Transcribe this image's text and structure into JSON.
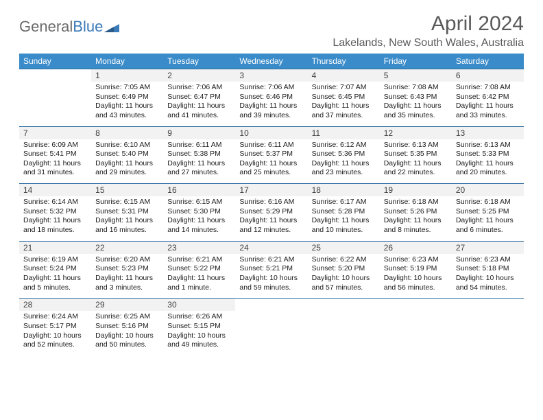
{
  "logo": {
    "text1": "General",
    "text2": "Blue"
  },
  "title": "April 2024",
  "location": "Lakelands, New South Wales, Australia",
  "colors": {
    "header_bg": "#3a8bc9",
    "border": "#2a6aa0",
    "daynum_bg": "#f2f2f2",
    "text": "#1a1a1a",
    "title_text": "#5a5a5a"
  },
  "dow": [
    "Sunday",
    "Monday",
    "Tuesday",
    "Wednesday",
    "Thursday",
    "Friday",
    "Saturday"
  ],
  "weeks": [
    [
      null,
      {
        "n": "1",
        "sr": "Sunrise: 7:05 AM",
        "ss": "Sunset: 6:49 PM",
        "dl": "Daylight: 11 hours and 43 minutes."
      },
      {
        "n": "2",
        "sr": "Sunrise: 7:06 AM",
        "ss": "Sunset: 6:47 PM",
        "dl": "Daylight: 11 hours and 41 minutes."
      },
      {
        "n": "3",
        "sr": "Sunrise: 7:06 AM",
        "ss": "Sunset: 6:46 PM",
        "dl": "Daylight: 11 hours and 39 minutes."
      },
      {
        "n": "4",
        "sr": "Sunrise: 7:07 AM",
        "ss": "Sunset: 6:45 PM",
        "dl": "Daylight: 11 hours and 37 minutes."
      },
      {
        "n": "5",
        "sr": "Sunrise: 7:08 AM",
        "ss": "Sunset: 6:43 PM",
        "dl": "Daylight: 11 hours and 35 minutes."
      },
      {
        "n": "6",
        "sr": "Sunrise: 7:08 AM",
        "ss": "Sunset: 6:42 PM",
        "dl": "Daylight: 11 hours and 33 minutes."
      }
    ],
    [
      {
        "n": "7",
        "sr": "Sunrise: 6:09 AM",
        "ss": "Sunset: 5:41 PM",
        "dl": "Daylight: 11 hours and 31 minutes."
      },
      {
        "n": "8",
        "sr": "Sunrise: 6:10 AM",
        "ss": "Sunset: 5:40 PM",
        "dl": "Daylight: 11 hours and 29 minutes."
      },
      {
        "n": "9",
        "sr": "Sunrise: 6:11 AM",
        "ss": "Sunset: 5:38 PM",
        "dl": "Daylight: 11 hours and 27 minutes."
      },
      {
        "n": "10",
        "sr": "Sunrise: 6:11 AM",
        "ss": "Sunset: 5:37 PM",
        "dl": "Daylight: 11 hours and 25 minutes."
      },
      {
        "n": "11",
        "sr": "Sunrise: 6:12 AM",
        "ss": "Sunset: 5:36 PM",
        "dl": "Daylight: 11 hours and 23 minutes."
      },
      {
        "n": "12",
        "sr": "Sunrise: 6:13 AM",
        "ss": "Sunset: 5:35 PM",
        "dl": "Daylight: 11 hours and 22 minutes."
      },
      {
        "n": "13",
        "sr": "Sunrise: 6:13 AM",
        "ss": "Sunset: 5:33 PM",
        "dl": "Daylight: 11 hours and 20 minutes."
      }
    ],
    [
      {
        "n": "14",
        "sr": "Sunrise: 6:14 AM",
        "ss": "Sunset: 5:32 PM",
        "dl": "Daylight: 11 hours and 18 minutes."
      },
      {
        "n": "15",
        "sr": "Sunrise: 6:15 AM",
        "ss": "Sunset: 5:31 PM",
        "dl": "Daylight: 11 hours and 16 minutes."
      },
      {
        "n": "16",
        "sr": "Sunrise: 6:15 AM",
        "ss": "Sunset: 5:30 PM",
        "dl": "Daylight: 11 hours and 14 minutes."
      },
      {
        "n": "17",
        "sr": "Sunrise: 6:16 AM",
        "ss": "Sunset: 5:29 PM",
        "dl": "Daylight: 11 hours and 12 minutes."
      },
      {
        "n": "18",
        "sr": "Sunrise: 6:17 AM",
        "ss": "Sunset: 5:28 PM",
        "dl": "Daylight: 11 hours and 10 minutes."
      },
      {
        "n": "19",
        "sr": "Sunrise: 6:18 AM",
        "ss": "Sunset: 5:26 PM",
        "dl": "Daylight: 11 hours and 8 minutes."
      },
      {
        "n": "20",
        "sr": "Sunrise: 6:18 AM",
        "ss": "Sunset: 5:25 PM",
        "dl": "Daylight: 11 hours and 6 minutes."
      }
    ],
    [
      {
        "n": "21",
        "sr": "Sunrise: 6:19 AM",
        "ss": "Sunset: 5:24 PM",
        "dl": "Daylight: 11 hours and 5 minutes."
      },
      {
        "n": "22",
        "sr": "Sunrise: 6:20 AM",
        "ss": "Sunset: 5:23 PM",
        "dl": "Daylight: 11 hours and 3 minutes."
      },
      {
        "n": "23",
        "sr": "Sunrise: 6:21 AM",
        "ss": "Sunset: 5:22 PM",
        "dl": "Daylight: 11 hours and 1 minute."
      },
      {
        "n": "24",
        "sr": "Sunrise: 6:21 AM",
        "ss": "Sunset: 5:21 PM",
        "dl": "Daylight: 10 hours and 59 minutes."
      },
      {
        "n": "25",
        "sr": "Sunrise: 6:22 AM",
        "ss": "Sunset: 5:20 PM",
        "dl": "Daylight: 10 hours and 57 minutes."
      },
      {
        "n": "26",
        "sr": "Sunrise: 6:23 AM",
        "ss": "Sunset: 5:19 PM",
        "dl": "Daylight: 10 hours and 56 minutes."
      },
      {
        "n": "27",
        "sr": "Sunrise: 6:23 AM",
        "ss": "Sunset: 5:18 PM",
        "dl": "Daylight: 10 hours and 54 minutes."
      }
    ],
    [
      {
        "n": "28",
        "sr": "Sunrise: 6:24 AM",
        "ss": "Sunset: 5:17 PM",
        "dl": "Daylight: 10 hours and 52 minutes."
      },
      {
        "n": "29",
        "sr": "Sunrise: 6:25 AM",
        "ss": "Sunset: 5:16 PM",
        "dl": "Daylight: 10 hours and 50 minutes."
      },
      {
        "n": "30",
        "sr": "Sunrise: 6:26 AM",
        "ss": "Sunset: 5:15 PM",
        "dl": "Daylight: 10 hours and 49 minutes."
      },
      null,
      null,
      null,
      null
    ]
  ]
}
